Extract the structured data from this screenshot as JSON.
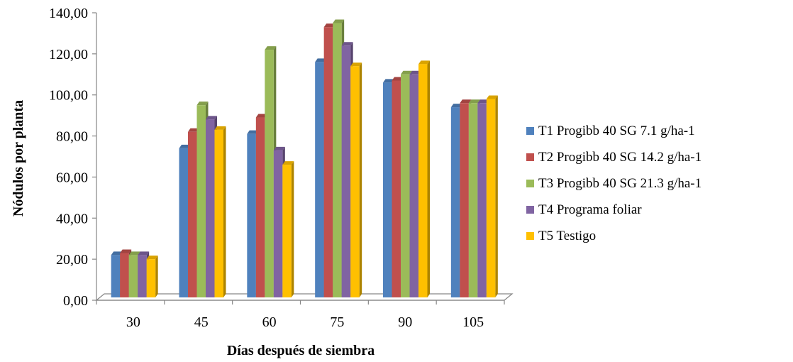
{
  "chart_data": {
    "type": "bar",
    "xlabel": "Días después de siembra",
    "ylabel": "Nódulos por planta",
    "categories": [
      "30",
      "45",
      "60",
      "75",
      "90",
      "105"
    ],
    "ylim": [
      0,
      140
    ],
    "yticks": [
      "0,00",
      "20,00",
      "40,00",
      "60,00",
      "80,00",
      "100,00",
      "120,00",
      "140,00"
    ],
    "grid": false,
    "legend_position": "right",
    "series": [
      {
        "name": "T1 Progibb 40 SG 7.1 g/ha-1",
        "color": "#4F81BD",
        "values": [
          22,
          74,
          81,
          116,
          106,
          94
        ]
      },
      {
        "name": "T2 Progibb 40 SG 14.2 g/ha-1",
        "color": "#C0504D",
        "values": [
          23,
          82,
          89,
          133,
          107,
          96
        ]
      },
      {
        "name": "T3 Progibb 40 SG 21.3 g/ha-1",
        "color": "#9BBB59",
        "values": [
          22,
          95,
          122,
          135,
          110,
          96
        ]
      },
      {
        "name": "T4 Programa foliar",
        "color": "#8064A2",
        "values": [
          22,
          88,
          73,
          124,
          110,
          96
        ]
      },
      {
        "name": "T5 Testigo",
        "color": "#FFC000",
        "values": [
          20,
          83,
          66,
          114,
          115,
          98
        ]
      }
    ]
  }
}
